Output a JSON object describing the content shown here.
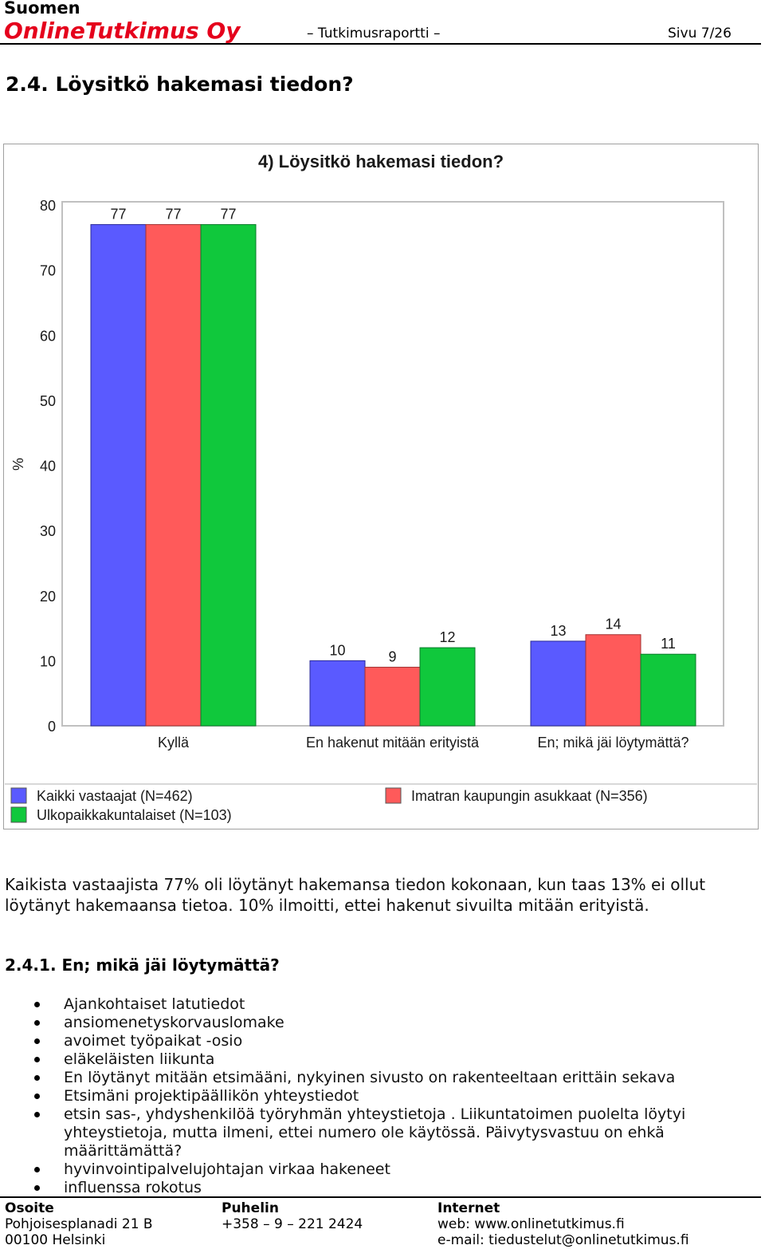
{
  "header": {
    "brand_top": "Suomen",
    "brand_main": "OnlineTutkimus Oy",
    "doc_type": "– Tutkimusraportti –",
    "page": "Sivu 7/26"
  },
  "section": {
    "title": "2.4. Löysitkö hakemasi tiedon?"
  },
  "chart_data": {
    "type": "bar",
    "title": "4) Löysitkö hakemasi tiedon?",
    "ylabel": "%",
    "xlabel": "",
    "ylim": [
      0,
      80
    ],
    "yticks": [
      "0",
      "10",
      "20",
      "30",
      "40",
      "50",
      "60",
      "70",
      "80"
    ],
    "categories": [
      "Kyllä",
      "En hakenut mitään erityistä",
      "En; mikä jäi löytymättä?"
    ],
    "series": [
      {
        "name": "Kaikki vastaajat (N=462)",
        "color": "#5a5aff",
        "values": [
          77,
          10,
          13
        ]
      },
      {
        "name": "Imatran kaupungin asukkaat (N=356)",
        "color": "#ff5a5a",
        "values": [
          77,
          9,
          14
        ]
      },
      {
        "name": "Ulkopaikkakuntalaiset (N=103)",
        "color": "#10c83c",
        "values": [
          77,
          12,
          11
        ]
      }
    ],
    "legend": "bottom"
  },
  "body": {
    "paragraph": "Kaikista vastaajista 77% oli löytänyt hakemansa tiedon kokonaan, kun taas 13% ei ollut löytänyt hakemaansa tietoa. 10% ilmoitti, ettei hakenut sivuilta mitään erityistä.",
    "subsection_title": "2.4.1. En; mikä jäi löytymättä?",
    "list": [
      "Ajankohtaiset latutiedot",
      "ansiomenetyskorvauslomake",
      "avoimet työpaikat -osio",
      "eläkeläisten liikunta",
      "En löytänyt mitään etsimääni, nykyinen sivusto on rakenteeltaan erittäin sekava",
      "Etsimäni projektipäällikön yhteystiedot",
      "etsin sas-, yhdyshenkilöä työryhmän yhteystietoja . Liikuntatoimen puolelta löytyi yhteystietoja, mutta ilmeni, ettei numero ole käytössä. Päivytysvastuu on ehkä määrittämättä?",
      "hyvinvointipalvelujohtajan virkaa hakeneet",
      "influenssa rokotus"
    ]
  },
  "footer": {
    "address": {
      "title": "Osoite",
      "line1": "Pohjoisesplanadi 21 B",
      "line2": "00100 Helsinki"
    },
    "phone": {
      "title": "Puhelin",
      "line1": "+358 – 9 – 221 2424"
    },
    "internet": {
      "title": "Internet",
      "line1": "web: www.onlinetutkimus.fi",
      "line2": "e-mail: tiedustelut@onlinetutkimus.fi"
    }
  }
}
